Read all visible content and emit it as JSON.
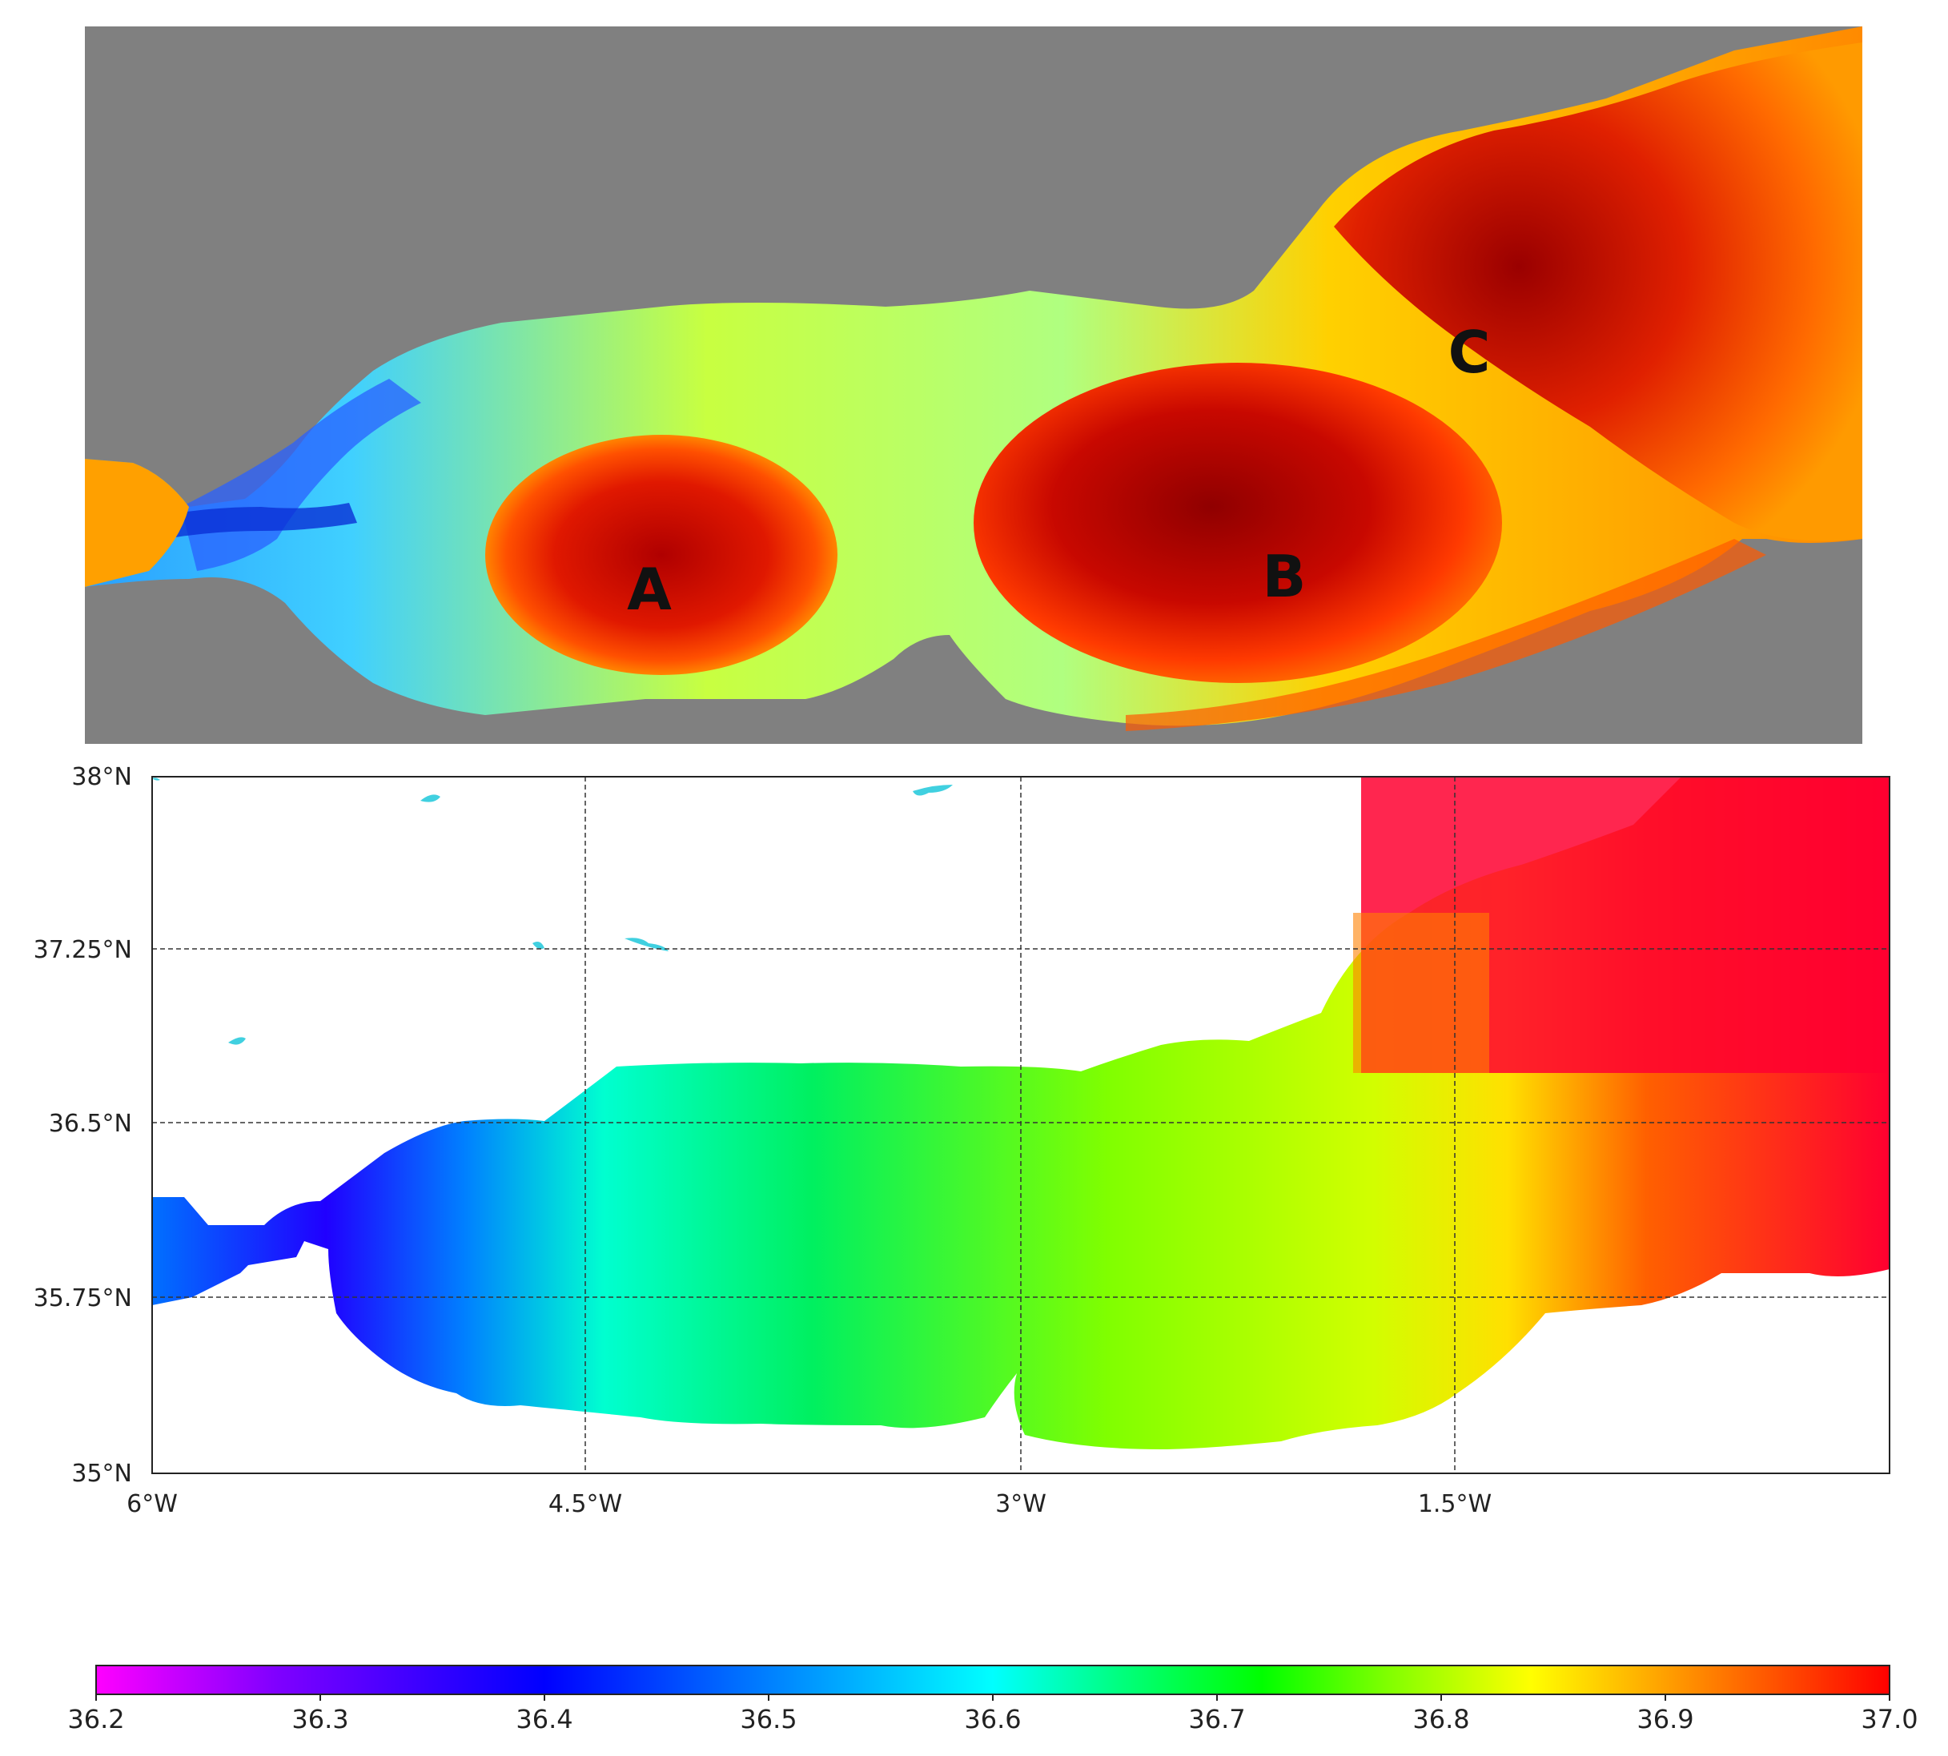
{
  "top_map": {
    "labels": [
      {
        "id": "eddy-a",
        "text": "A"
      },
      {
        "id": "eddy-b",
        "text": "B"
      },
      {
        "id": "eddy-c",
        "text": "C"
      }
    ],
    "colors": {
      "land": "#808080",
      "cold": "#0a2fd6",
      "cool": "#2ad0ff",
      "mid": "#d8ff30",
      "warm": "#ff8a00",
      "hot": "#ff2a00",
      "core": "#a80000"
    }
  },
  "bottom_map": {
    "lat_ticks": [
      "38°N",
      "37.25°N",
      "36.5°N",
      "35.75°N",
      "35°N"
    ],
    "lon_ticks": [
      "6°W",
      "4.5°W",
      "3°W",
      "1.5°W"
    ]
  },
  "colorbar": {
    "ticks": [
      "36.2",
      "36.3",
      "36.4",
      "36.5",
      "36.6",
      "36.7",
      "36.8",
      "36.9",
      "37.0"
    ],
    "stops": [
      "#ff00ff",
      "#8000ff",
      "#0000ff",
      "#0080ff",
      "#00ffff",
      "#00ff80",
      "#00ff00",
      "#80ff00",
      "#ffff00",
      "#ff8000",
      "#ff0000"
    ]
  }
}
